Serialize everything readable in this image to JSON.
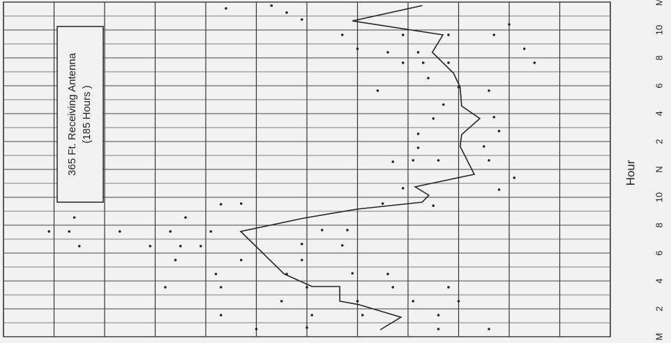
{
  "chart_data": {
    "type": "line",
    "annotation": [
      "365 Ft. Receiving Antenna",
      "(185 Hours )"
    ],
    "x_label": "Hour",
    "xlim": [
      0,
      24
    ],
    "xticks": [
      {
        "value": 0,
        "label": "M"
      },
      2,
      4,
      6,
      8,
      10,
      {
        "value": 12,
        "label": "N"
      },
      {
        "value": 14,
        "label": "2"
      },
      {
        "value": 16,
        "label": "4"
      },
      {
        "value": 18,
        "label": "6"
      },
      {
        "value": 20,
        "label": "8"
      },
      {
        "value": 22,
        "label": "10"
      },
      {
        "value": 24,
        "label": "M"
      }
    ],
    "xminorticks": [
      1,
      3,
      5,
      7,
      9,
      11,
      13,
      15,
      17,
      19,
      21,
      23
    ],
    "ylim": [
      0,
      12
    ],
    "yticks": [
      0,
      1,
      2,
      3,
      4,
      5,
      6,
      7,
      8,
      9,
      10,
      11,
      12
    ],
    "grid": true,
    "color": "#222222",
    "x": [
      0.5,
      1.4,
      2.3,
      2.55,
      3.6,
      3.6,
      4.5,
      7.55,
      8.5,
      9.15,
      9.65,
      10.15,
      10.75,
      11.65,
      13.65,
      14.5,
      15.65,
      16.55,
      17.9,
      18.9,
      20.4,
      21.65,
      22.65,
      23.75
    ],
    "values": [
      7.45,
      7.86,
      7.03,
      6.65,
      6.65,
      6.1,
      5.55,
      4.69,
      5.93,
      6.99,
      8.28,
      8.41,
      8.14,
      9.31,
      9.03,
      9.06,
      9.42,
      9.06,
      9.03,
      8.9,
      8.48,
      8.69,
      6.9,
      8.28
    ],
    "points": {
      "x": [
        23.55,
        23.75,
        23.25,
        22.75,
        21.65,
        20.65,
        20.4,
        21.65,
        19.65,
        19.65,
        19.65,
        21.65,
        21.65,
        22.4,
        20.65,
        19.65,
        20.4,
        18.55,
        17.9,
        17.65,
        17.65,
        16.65,
        15.65,
        15.75,
        14.75,
        14.55,
        13.65,
        13.55,
        12.65,
        12.65,
        12.65,
        12.55,
        11.4,
        10.65,
        10.55,
        9.55,
        9.4,
        9.5,
        9.55,
        8.55,
        8.55,
        7.55,
        7.55,
        7.55,
        7.55,
        7.55,
        7.65,
        7.65,
        6.65,
        6.55,
        6.5,
        6.5,
        6.5,
        6.5,
        5.5,
        5.5,
        5.5,
        4.5,
        4.5,
        4.55,
        4.5,
        3.55,
        3.55,
        3.55,
        3.55,
        3.55,
        2.55,
        2.55,
        2.55,
        2.55,
        1.55,
        1.55,
        1.55,
        1.55,
        0.55,
        0.65,
        0.55,
        0.55
      ],
      "values": [
        4.4,
        5.3,
        5.6,
        5.9,
        6.7,
        7.0,
        7.6,
        7.9,
        7.9,
        8.3,
        8.8,
        8.8,
        9.7,
        10.0,
        10.3,
        10.5,
        8.2,
        8.4,
        9.0,
        9.6,
        7.4,
        8.7,
        8.5,
        9.7,
        9.8,
        8.2,
        9.5,
        8.2,
        8.1,
        8.6,
        9.6,
        7.7,
        10.1,
        7.9,
        9.8,
        7.5,
        8.5,
        4.3,
        4.7,
        3.6,
        1.4,
        0.9,
        1.3,
        2.3,
        3.3,
        4.1,
        6.3,
        6.8,
        5.9,
        6.7,
        1.5,
        2.9,
        3.5,
        3.9,
        4.7,
        5.9,
        3.4,
        4.2,
        5.6,
        6.9,
        7.6,
        3.2,
        4.3,
        6.0,
        7.7,
        8.8,
        5.5,
        7.0,
        8.1,
        9.0,
        4.3,
        6.1,
        7.1,
        8.6,
        5.0,
        6.0,
        8.6,
        9.6
      ]
    }
  }
}
